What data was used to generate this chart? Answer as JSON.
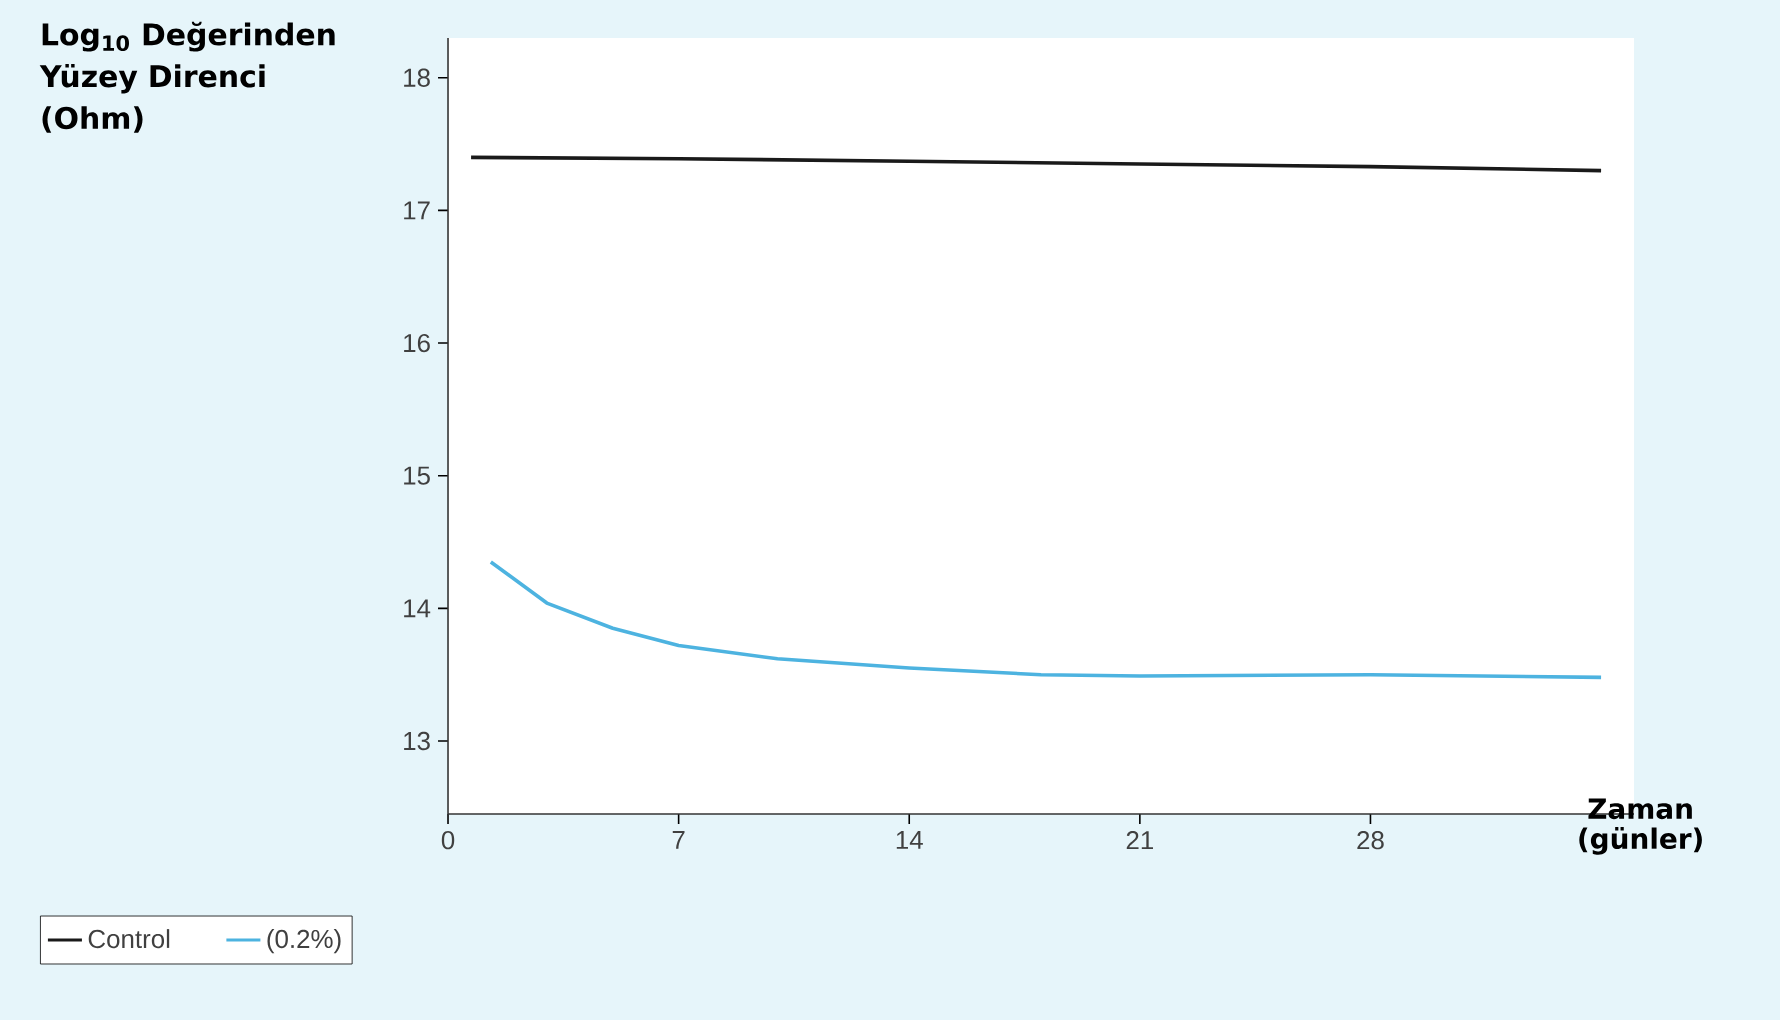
{
  "chart_data": {
    "type": "line",
    "xlabel": "Zaman (günler)",
    "ylabel": "Log$_{10}$ Değerinden Yüzey Direnci (Ohm)",
    "xlim": [
      0,
      36
    ],
    "ylim": [
      12.45,
      18.3
    ],
    "xticks": [
      0,
      7,
      14,
      21,
      28
    ],
    "yticks": [
      13,
      14,
      15,
      16,
      17,
      18
    ],
    "legend": "bottom",
    "marker": "none",
    "line_style": "solid",
    "series": [
      {
        "name": "Control",
        "color": "#1a1a1a",
        "x": [
          0.7,
          7,
          14,
          21,
          28,
          35
        ],
        "values": [
          17.4,
          17.39,
          17.37,
          17.35,
          17.33,
          17.3
        ]
      },
      {
        "name": "(0.2%)",
        "color": "#4db3e0",
        "x": [
          1.3,
          3,
          5,
          7,
          10,
          14,
          18,
          21,
          28,
          35
        ],
        "values": [
          14.35,
          14.04,
          13.85,
          13.72,
          13.62,
          13.55,
          13.5,
          13.49,
          13.5,
          13.48
        ]
      }
    ]
  }
}
